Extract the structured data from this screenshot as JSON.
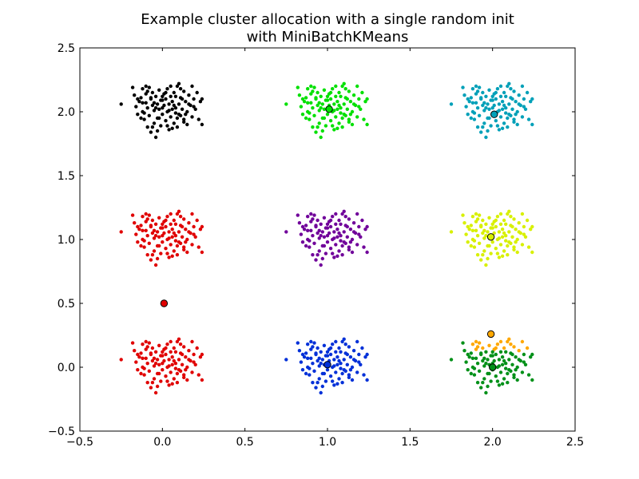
{
  "chart_data": {
    "type": "scatter",
    "title_lines": [
      "Example cluster allocation with a single random init",
      "with MiniBatchKMeans"
    ],
    "xlabel": "",
    "ylabel": "",
    "xlim": [
      -0.5,
      2.5
    ],
    "ylim": [
      -0.5,
      2.5
    ],
    "x_ticks": [
      -0.5,
      0.0,
      0.5,
      1.0,
      1.5,
      2.0,
      2.5
    ],
    "y_ticks": [
      -0.5,
      0.0,
      0.5,
      1.0,
      1.5,
      2.0,
      2.5
    ],
    "x_tick_labels": [
      "−0.5",
      "0.0",
      "0.5",
      "1.0",
      "1.5",
      "2.0",
      "2.5"
    ],
    "y_tick_labels": [
      "−0.5",
      "0.0",
      "0.5",
      "1.0",
      "1.5",
      "2.0",
      "2.5"
    ],
    "grid": false,
    "colors": {
      "black": "#000000",
      "green": "#00e000",
      "cyan": "#00a0b8",
      "red": "#e00000",
      "purple": "#70009a",
      "yellow": "#d8f000",
      "blue": "#0030d8",
      "orange": "#ffa800",
      "darkgreen": "#009018"
    },
    "blob_offsets": [
      [
        -0.25,
        0.06
      ],
      [
        -0.18,
        0.19
      ],
      [
        -0.17,
        0.13
      ],
      [
        -0.16,
        0.04
      ],
      [
        -0.15,
        -0.02
      ],
      [
        -0.14,
        0.08
      ],
      [
        -0.13,
        0.11
      ],
      [
        -0.12,
        0.18
      ],
      [
        -0.12,
        0.0
      ],
      [
        -0.11,
        -0.06
      ],
      [
        -0.1,
        0.07
      ],
      [
        -0.1,
        0.14
      ],
      [
        -0.09,
        -0.12
      ],
      [
        -0.09,
        0.03
      ],
      [
        -0.08,
        0.19
      ],
      [
        -0.08,
        -0.03
      ],
      [
        -0.07,
        0.1
      ],
      [
        -0.07,
        -0.16
      ],
      [
        -0.06,
        0.05
      ],
      [
        -0.06,
        0.15
      ],
      [
        -0.05,
        -0.09
      ],
      [
        -0.05,
        0.01
      ],
      [
        -0.04,
        0.12
      ],
      [
        -0.04,
        -0.2
      ],
      [
        -0.03,
        0.06
      ],
      [
        -0.03,
        -0.05
      ],
      [
        -0.02,
        0.17
      ],
      [
        -0.02,
        0.02
      ],
      [
        -0.01,
        -0.11
      ],
      [
        -0.01,
        0.09
      ],
      [
        0.0,
        0.03
      ],
      [
        0.0,
        -0.02
      ],
      [
        0.01,
        0.14
      ],
      [
        0.01,
        0.05
      ],
      [
        0.02,
        -0.07
      ],
      [
        0.02,
        0.1
      ],
      [
        0.03,
        0.0
      ],
      [
        0.03,
        0.18
      ],
      [
        0.04,
        -0.14
      ],
      [
        0.04,
        0.06
      ],
      [
        0.05,
        0.12
      ],
      [
        0.05,
        -0.04
      ],
      [
        0.06,
        0.02
      ],
      [
        0.06,
        0.08
      ],
      [
        0.07,
        -0.09
      ],
      [
        0.07,
        0.15
      ],
      [
        0.08,
        0.03
      ],
      [
        0.08,
        -0.01
      ],
      [
        0.09,
        0.2
      ],
      [
        0.09,
        -0.12
      ],
      [
        0.1,
        0.06
      ],
      [
        0.1,
        0.22
      ],
      [
        0.11,
        -0.03
      ],
      [
        0.11,
        0.11
      ],
      [
        0.12,
        0.02
      ],
      [
        0.13,
        -0.06
      ],
      [
        0.13,
        0.16
      ],
      [
        0.14,
        0.08
      ],
      [
        0.15,
        0.0
      ],
      [
        0.15,
        -0.1
      ],
      [
        0.16,
        0.13
      ],
      [
        0.17,
        0.05
      ],
      [
        0.18,
        0.2
      ],
      [
        0.18,
        -0.04
      ],
      [
        0.19,
        0.1
      ],
      [
        0.2,
        0.02
      ],
      [
        0.21,
        0.15
      ],
      [
        0.22,
        -0.06
      ],
      [
        0.23,
        0.08
      ],
      [
        0.24,
        0.1
      ],
      [
        0.24,
        -0.1
      ],
      [
        -0.12,
        0.07
      ],
      [
        -0.06,
        -0.12
      ],
      [
        0.0,
        0.09
      ],
      [
        0.03,
        -0.11
      ],
      [
        0.07,
        0.05
      ],
      [
        -0.15,
        0.1
      ],
      [
        0.12,
        0.1
      ],
      [
        -0.09,
        0.16
      ],
      [
        0.14,
        -0.02
      ],
      [
        -0.02,
        -0.05
      ],
      [
        0.05,
        0.2
      ],
      [
        -0.11,
        -0.01
      ],
      [
        0.09,
        -0.05
      ],
      [
        0.02,
        0.15
      ],
      [
        -0.04,
        0.03
      ],
      [
        0.16,
        0.06
      ],
      [
        -0.07,
        0.11
      ],
      [
        0.11,
        0.18
      ],
      [
        -0.13,
        -0.05
      ],
      [
        0.06,
        -0.13
      ],
      [
        0.0,
        0.12
      ],
      [
        -0.05,
        0.07
      ],
      [
        0.19,
        0.04
      ],
      [
        -0.1,
        0.2
      ],
      [
        0.08,
        0.12
      ],
      [
        0.13,
        -0.08
      ],
      [
        -0.03,
        -0.15
      ],
      [
        0.04,
        0.01
      ],
      [
        0.1,
        -0.02
      ]
    ],
    "clusters": [
      {
        "center": [
          0.0,
          2.0
        ],
        "color": "#000000",
        "outlier": false
      },
      {
        "center": [
          1.0,
          2.0
        ],
        "color": "#00e000",
        "outlier": false
      },
      {
        "center": [
          2.0,
          2.0
        ],
        "color": "#00a0b8",
        "outlier": false
      },
      {
        "center": [
          0.0,
          1.0
        ],
        "color": "#e00000",
        "outlier": false
      },
      {
        "center": [
          1.0,
          1.0
        ],
        "color": "#70009a",
        "outlier": false
      },
      {
        "center": [
          2.0,
          1.0
        ],
        "color": "#d8f000",
        "outlier": false
      },
      {
        "center": [
          0.0,
          0.0
        ],
        "color": "#e00000",
        "outlier": false
      },
      {
        "center": [
          1.0,
          0.0
        ],
        "color": "#0030d8",
        "outlier": false
      },
      {
        "center": [
          2.0,
          0.0
        ],
        "color": "#009018",
        "outlier": true,
        "outlier_color": "#ffa800"
      }
    ],
    "centroids": [
      {
        "x": 1.01,
        "y": 2.02,
        "color": "#00e000"
      },
      {
        "x": 2.01,
        "y": 1.98,
        "color": "#00a0b8"
      },
      {
        "x": 1.99,
        "y": 1.02,
        "color": "#d8f000"
      },
      {
        "x": 0.01,
        "y": 0.5,
        "color": "#e00000"
      },
      {
        "x": 1.99,
        "y": 0.26,
        "color": "#ffa800"
      },
      {
        "x": 1.0,
        "y": 0.02,
        "color": "#0030d8"
      },
      {
        "x": 2.0,
        "y": 0.0,
        "color": "#009018"
      }
    ]
  }
}
